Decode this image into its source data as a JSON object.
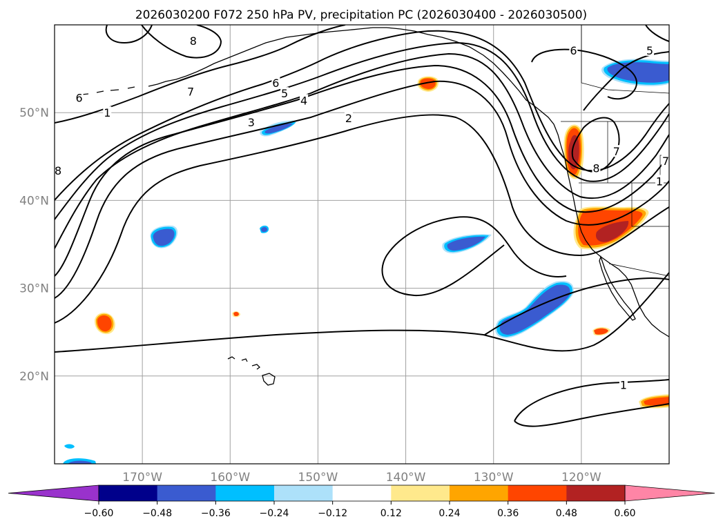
{
  "figure": {
    "title": "2026030200 F072 250 hPa PV, precipitation PC (2026030400 - 2026030500)"
  },
  "map": {
    "projection": "PlateCarree",
    "lon_range": [
      -180,
      -110
    ],
    "lat_range": [
      10,
      60
    ],
    "lat_ticks": [
      {
        "value": 50,
        "label": "50°N"
      },
      {
        "value": 40,
        "label": "40°N"
      },
      {
        "value": 30,
        "label": "30°N"
      },
      {
        "value": 20,
        "label": "20°N"
      }
    ],
    "lon_ticks": [
      {
        "value": -170,
        "label": "170°W"
      },
      {
        "value": -160,
        "label": "160°W"
      },
      {
        "value": -150,
        "label": "150°W"
      },
      {
        "value": -140,
        "label": "140°W"
      },
      {
        "value": -130,
        "label": "130°W"
      },
      {
        "value": -120,
        "label": "120°W"
      }
    ],
    "pv_contour_labels": [
      {
        "text": "8",
        "lon": -164.2,
        "lat": 58.2
      },
      {
        "text": "6",
        "lon": -177.2,
        "lat": 51.7
      },
      {
        "text": "7",
        "lon": -164.5,
        "lat": 52.4
      },
      {
        "text": "6",
        "lon": -154.8,
        "lat": 53.4
      },
      {
        "text": "5",
        "lon": -153.8,
        "lat": 52.2
      },
      {
        "text": "4",
        "lon": -151.6,
        "lat": 51.4
      },
      {
        "text": "1",
        "lon": -174.0,
        "lat": 50.0
      },
      {
        "text": "3",
        "lon": -157.6,
        "lat": 48.9
      },
      {
        "text": "2",
        "lon": -146.5,
        "lat": 49.4
      },
      {
        "text": "8",
        "lon": -179.6,
        "lat": 43.4
      },
      {
        "text": "6",
        "lon": -120.9,
        "lat": 57.1
      },
      {
        "text": "5",
        "lon": -112.2,
        "lat": 57.1
      },
      {
        "text": "8",
        "lon": -118.3,
        "lat": 43.7
      },
      {
        "text": "7",
        "lon": -116.0,
        "lat": 45.6
      },
      {
        "text": "7",
        "lon": -110.4,
        "lat": 44.5
      },
      {
        "text": "1",
        "lon": -111.1,
        "lat": 42.2
      },
      {
        "text": "1",
        "lon": -115.2,
        "lat": 19.0
      }
    ]
  },
  "colorbar": {
    "levels": [
      -0.6,
      -0.48,
      -0.36,
      -0.24,
      -0.12,
      0.12,
      0.24,
      0.36,
      0.48,
      0.6
    ],
    "tick_labels": [
      "−0.60",
      "−0.48",
      "−0.36",
      "−0.24",
      "−0.12",
      "0.12",
      "0.24",
      "0.36",
      "0.48",
      "0.60"
    ],
    "colors": [
      "#9932CC",
      "#00008B",
      "#3A5BD0",
      "#00BFFF",
      "#ADE1FA",
      "#FFFFFF",
      "#FFE98C",
      "#FFA500",
      "#FF4500",
      "#B22222",
      "#FF85A6"
    ]
  }
}
